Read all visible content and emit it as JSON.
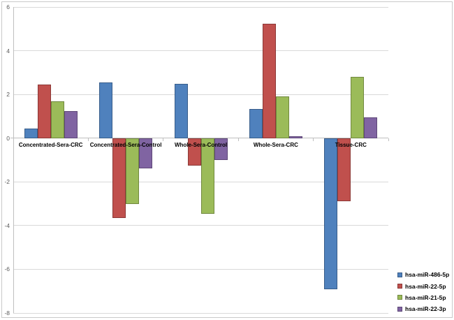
{
  "chart_data": {
    "type": "bar",
    "title": "",
    "xlabel": "",
    "ylabel": "",
    "categories": [
      "Concentrated-Sera-CRC",
      "Concentrated-Sera-Control",
      "Whole-Sera-Control",
      "Whole-Sera-CRC",
      "Tissue-CRC"
    ],
    "series": [
      {
        "name": "hsa-miR-486-5p",
        "color": "#4f81bd",
        "border_color": "#385d8a",
        "values": [
          0.45,
          2.55,
          2.5,
          1.35,
          -6.9
        ]
      },
      {
        "name": "hsa-miR-22-5p",
        "color": "#c0504d",
        "border_color": "#8c3836",
        "values": [
          2.45,
          -3.65,
          -1.25,
          5.25,
          -2.9
        ]
      },
      {
        "name": "hsa-miR-21-5p",
        "color": "#9bbb59",
        "border_color": "#71893f",
        "values": [
          1.7,
          -3.0,
          -3.45,
          1.9,
          2.8
        ]
      },
      {
        "name": "hsa-miR-22-3p",
        "color": "#8064a2",
        "border_color": "#5e4878",
        "values": [
          1.25,
          -1.4,
          -1.0,
          0.1,
          0.95
        ]
      }
    ],
    "ylim": [
      -8,
      6
    ],
    "yticks": [
      6,
      4,
      2,
      0,
      -2,
      -4,
      -6,
      -8
    ],
    "grid": true,
    "legend_position": "bottom-right",
    "colors": {
      "gridline": "#d9d9d9",
      "axis_line": "#bfbfbf",
      "tick_label": "#595959",
      "category_label": "#000000",
      "legend_text": "#000000",
      "frame_border": "#c9c9c9",
      "background": "#ffffff"
    }
  }
}
